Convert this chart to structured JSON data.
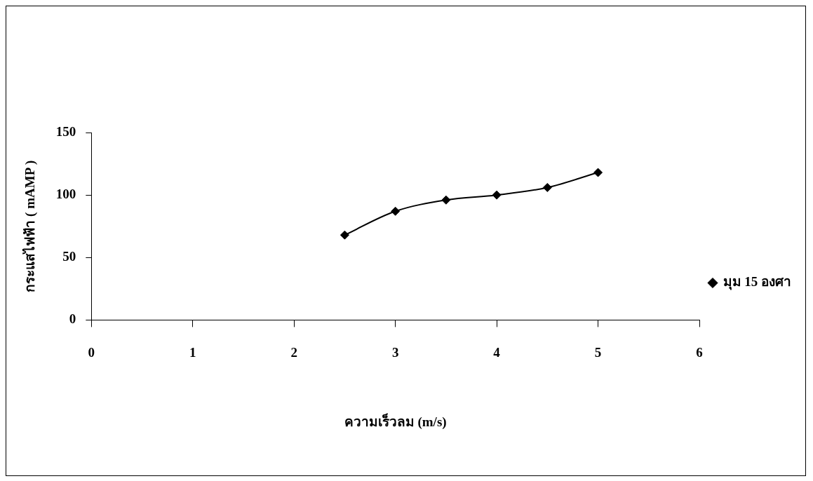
{
  "chart_data": {
    "type": "line",
    "xlabel": "ความเร็วลม (m/s)",
    "ylabel": "กระแสไฟฟ้า ( mAMP )",
    "x": [
      2.5,
      3,
      3.5,
      4,
      4.5,
      5
    ],
    "series": [
      {
        "name": "มุม 15 องศา",
        "color": "#000000",
        "values": [
          68,
          87,
          96,
          100,
          106,
          118
        ]
      }
    ],
    "xlim": [
      0,
      6
    ],
    "xticks": [
      0,
      1,
      2,
      3,
      4,
      5,
      6
    ],
    "ylim": [
      0,
      150
    ],
    "yticks": [
      0,
      50,
      100,
      150
    ],
    "grid": false,
    "legend": "right",
    "marker": "diamond",
    "line_style": "solid"
  }
}
